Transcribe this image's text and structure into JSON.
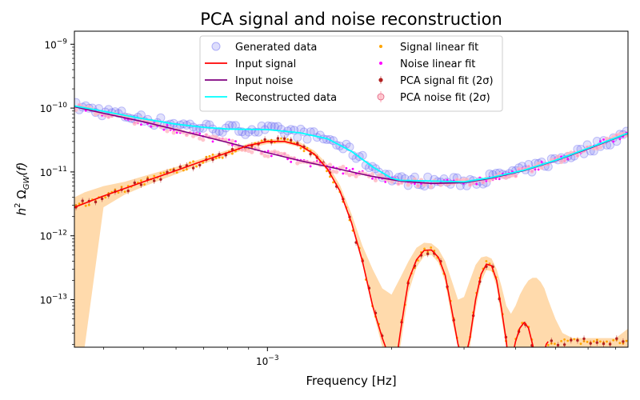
{
  "chart_data": {
    "type": "line",
    "title": "PCA signal and noise reconstruction",
    "xlabel": "Frequency [Hz]",
    "ylabel_parts": [
      "h",
      "2",
      " Ω",
      "GW",
      "(f)"
    ],
    "xscale": "log",
    "yscale": "log",
    "xlim": [
      0.00034,
      0.0075
    ],
    "ylim": [
      1.8e-14,
      1.6e-09
    ],
    "x_ticks": [
      {
        "value": 0.001,
        "base": "10",
        "exp": "−3"
      }
    ],
    "y_ticks": [
      {
        "value": 1e-09,
        "base": "10",
        "exp": "−9"
      },
      {
        "value": 1e-10,
        "base": "10",
        "exp": "−10"
      },
      {
        "value": 1e-11,
        "base": "10",
        "exp": "−11"
      },
      {
        "value": 1e-12,
        "base": "10",
        "exp": "−12"
      },
      {
        "value": 1e-13,
        "base": "10",
        "exp": "−13"
      }
    ],
    "grid": false,
    "legend_position": "top-center",
    "legend": [
      {
        "label": "Generated data",
        "key": "generated",
        "marker": "circle-open",
        "color": "#5a5af0"
      },
      {
        "label": "Signal linear fit",
        "key": "signal_fit",
        "marker": "dot",
        "color": "#ffa500"
      },
      {
        "label": "Input signal",
        "key": "input_signal",
        "marker": "line",
        "color": "#ff0000"
      },
      {
        "label": "Noise linear fit",
        "key": "noise_fit",
        "marker": "dot",
        "color": "#ff00ff"
      },
      {
        "label": "Input noise",
        "key": "input_noise",
        "marker": "line",
        "color": "#800080"
      },
      {
        "label": "PCA signal fit (2σ)",
        "key": "pca_signal",
        "marker": "dot-errbar",
        "color": "#b22222"
      },
      {
        "label": "Reconstructed data",
        "key": "reconstructed",
        "marker": "line",
        "color": "#00ffff"
      },
      {
        "label": "PCA noise fit (2σ)",
        "key": "pca_noise",
        "marker": "circle-errbar",
        "color": "#ffb6c1"
      }
    ],
    "series": [
      {
        "name": "Input noise",
        "color": "#800080",
        "x": [
          0.00034,
          0.0004,
          0.0005,
          0.0006,
          0.0007,
          0.0008,
          0.001,
          0.0012,
          0.0015,
          0.0018,
          0.0021,
          0.0025,
          0.003,
          0.0035,
          0.0042,
          0.005,
          0.006,
          0.0075
        ],
        "y": [
          1.05e-10,
          8.3e-11,
          6.1e-11,
          4.6e-11,
          3.6e-11,
          2.9e-11,
          2e-11,
          1.5e-11,
          1.1e-11,
          8.5e-12,
          7.2e-12,
          6.6e-12,
          6.8e-12,
          8e-12,
          1.05e-11,
          1.5e-11,
          2.3e-11,
          4e-11
        ]
      },
      {
        "name": "Input signal",
        "color": "#ff0000",
        "x": [
          0.00034,
          0.0004,
          0.0005,
          0.0006,
          0.0007,
          0.0008,
          0.0009,
          0.001,
          0.0011,
          0.0012,
          0.0013,
          0.0014,
          0.0015,
          0.0016,
          0.0017,
          0.0018,
          0.0019,
          0.002,
          0.00205,
          0.0021,
          0.00215,
          0.0022,
          0.0023,
          0.0024,
          0.0025,
          0.0026,
          0.0027,
          0.0028,
          0.0029,
          0.003,
          0.0031,
          0.0032,
          0.0033,
          0.0034,
          0.0035,
          0.0036,
          0.0037,
          0.0038,
          0.00385,
          0.0039,
          0.00395,
          0.004,
          0.0041,
          0.0042,
          0.0043,
          0.0044,
          0.0045,
          0.0046,
          0.0047,
          0.00475,
          0.0048
        ],
        "y": [
          2.8e-12,
          4.2e-12,
          7e-12,
          1.05e-11,
          1.5e-11,
          2e-11,
          2.6e-11,
          3e-11,
          3e-11,
          2.6e-11,
          1.9e-11,
          1.1e-11,
          5e-12,
          1.6e-12,
          4e-13,
          8e-14,
          2.5e-14,
          1e-14,
          1e-14,
          3e-14,
          8e-14,
          2e-13,
          4.2e-13,
          5.9e-13,
          6e-13,
          4.6e-13,
          2.4e-13,
          7e-14,
          2e-14,
          1e-14,
          2.5e-14,
          1e-13,
          2.5e-13,
          3.6e-13,
          3.4e-13,
          2e-13,
          7e-14,
          2.2e-14,
          1e-14,
          1e-14,
          1.5e-14,
          2.2e-14,
          3.6e-14,
          4.4e-14,
          3.6e-14,
          2e-14,
          1e-14,
          1e-14,
          1.5e-14,
          2e-14,
          2.2e-14
        ]
      },
      {
        "name": "Reconstructed data",
        "color": "#00ffff",
        "x": [
          0.00034,
          0.0004,
          0.0005,
          0.0006,
          0.0007,
          0.0008,
          0.001,
          0.0012,
          0.0014,
          0.0016,
          0.0018,
          0.002,
          0.0021,
          0.0025,
          0.003,
          0.0035,
          0.0042,
          0.005,
          0.006,
          0.0075
        ],
        "y": [
          1.08e-10,
          8.9e-11,
          6.8e-11,
          5.6e-11,
          5e-11,
          4.7e-11,
          4.6e-11,
          4.1e-11,
          3.3e-11,
          2.1e-11,
          1.2e-11,
          8e-12,
          7.4e-12,
          7.2e-12,
          7e-12,
          8.2e-12,
          1.07e-11,
          1.52e-11,
          2.35e-11,
          4.05e-11
        ]
      }
    ],
    "scatter_series": [
      {
        "name": "Generated data",
        "color": "#5a5af0",
        "marker": "circle-open",
        "follows": "Reconstructed data"
      },
      {
        "name": "Signal linear fit",
        "color": "#ffa500",
        "marker": "dot",
        "follows": "Input signal"
      },
      {
        "name": "Noise linear fit",
        "color": "#ff00ff",
        "marker": "dot",
        "follows": "Input noise"
      },
      {
        "name": "PCA signal fit (2σ)",
        "color": "#b22222",
        "marker": "dot-errbar",
        "follows": "Input signal"
      },
      {
        "name": "PCA noise fit (2σ)",
        "color": "#ffb6c1",
        "marker": "circle-errbar",
        "follows": "Input noise"
      }
    ],
    "signal_band": {
      "name": "Signal 2σ band",
      "color": "#ffd8a8",
      "x": [
        0.00034,
        0.00036,
        0.0004,
        0.00045,
        0.0005,
        0.0006,
        0.0007,
        0.0008,
        0.0009,
        0.001,
        0.0011,
        0.0012,
        0.0013,
        0.0014,
        0.0015,
        0.0016,
        0.0017,
        0.0018,
        0.0019,
        0.002,
        0.0021,
        0.0022,
        0.0023,
        0.0024,
        0.0025,
        0.0026,
        0.0027,
        0.0028,
        0.0029,
        0.003,
        0.0031,
        0.0032,
        0.0033,
        0.0034,
        0.0035,
        0.0036,
        0.0037,
        0.0038,
        0.0039,
        0.004,
        0.0041,
        0.0042,
        0.0043,
        0.0044,
        0.0045,
        0.0046,
        0.0047,
        0.0048,
        0.0049,
        0.005,
        0.0052,
        0.0055,
        0.006,
        0.0065,
        0.007,
        0.0075
      ],
      "lower": [
        1.8e-14,
        1.8e-14,
        2.8e-12,
        4.4e-12,
        5.9e-12,
        9.2e-12,
        1.35e-11,
        1.82e-11,
        2.35e-11,
        2.75e-11,
        2.8e-11,
        2.45e-11,
        1.8e-11,
        1.05e-11,
        4.8e-12,
        1.5e-12,
        3.6e-13,
        7e-14,
        1.8e-14,
        1.8e-14,
        1.8e-14,
        1.3e-13,
        3.2e-13,
        4.8e-13,
        5e-13,
        3.8e-13,
        1.9e-13,
        5e-14,
        1.8e-14,
        1.8e-14,
        1.8e-14,
        7e-14,
        1.9e-13,
        2.9e-13,
        2.8e-13,
        1.6e-13,
        5e-14,
        1.8e-14,
        1.8e-14,
        1.8e-14,
        1.8e-14,
        1.8e-14,
        1.8e-14,
        1.8e-14,
        1.8e-14,
        1.8e-14,
        1.8e-14,
        1.8e-14,
        1.8e-14,
        1.8e-14,
        1.8e-14,
        1.8e-14,
        1.8e-14,
        1.8e-14,
        1.8e-14,
        1.8e-14
      ],
      "upper": [
        4e-12,
        4.8e-12,
        6e-12,
        7e-12,
        8.6e-12,
        1.2e-11,
        1.65e-11,
        2.2e-11,
        2.8e-11,
        3.25e-11,
        3.25e-11,
        2.9e-11,
        2.15e-11,
        1.3e-11,
        6.2e-12,
        2.2e-12,
        7e-13,
        3e-13,
        1.5e-13,
        1.2e-13,
        2.2e-13,
        4e-13,
        6.5e-13,
        7.8e-13,
        7.6e-13,
        6.2e-13,
        4e-13,
        2e-13,
        1e-13,
        1.1e-13,
        2e-13,
        3.5e-13,
        4.6e-13,
        4.8e-13,
        4.4e-13,
        3e-13,
        1.6e-13,
        8e-14,
        6e-14,
        8e-14,
        1.2e-13,
        1.6e-13,
        2e-13,
        2.2e-13,
        2.2e-13,
        1.9e-13,
        1.5e-13,
        1e-13,
        7e-14,
        5e-14,
        3e-14,
        2.5e-14,
        2.5e-14,
        2.5e-14,
        2.5e-14,
        3.5e-14
      ]
    }
  }
}
